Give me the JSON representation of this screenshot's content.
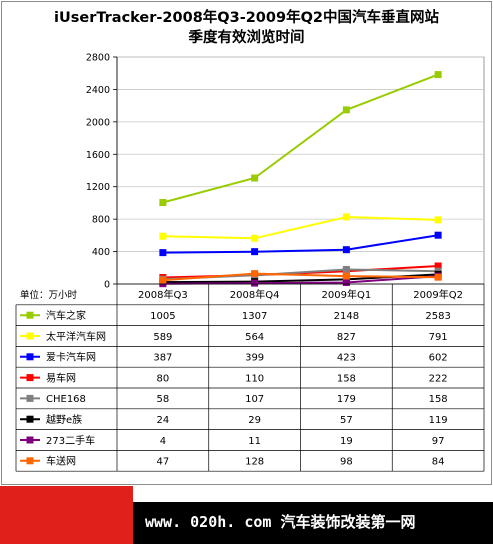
{
  "chart_data": {
    "type": "line",
    "title_line1": "iUserTracker-2008年Q3-2009年Q2中国汽车垂直网站",
    "title_line2": "季度有效浏览时间",
    "unit_label": "单位：万小时",
    "categories": [
      "2008年Q3",
      "2008年Q4",
      "2009年Q1",
      "2009年Q2"
    ],
    "ylim": [
      0,
      2800
    ],
    "yticks": [
      0,
      400,
      800,
      1200,
      1600,
      2000,
      2400,
      2800
    ],
    "grid": true,
    "legend": "table-below",
    "series": [
      {
        "name": "汽车之家",
        "color": "#99cc00",
        "values": [
          1005,
          1307,
          2148,
          2583
        ]
      },
      {
        "name": "太平洋汽车网",
        "color": "#ffff00",
        "values": [
          589,
          564,
          827,
          791
        ]
      },
      {
        "name": "爱卡汽车网",
        "color": "#0000ff",
        "values": [
          387,
          399,
          423,
          602
        ]
      },
      {
        "name": "易车网",
        "color": "#ff0000",
        "values": [
          80,
          110,
          158,
          222
        ]
      },
      {
        "name": "CHE168",
        "color": "#808080",
        "values": [
          58,
          107,
          179,
          158
        ]
      },
      {
        "name": "越野e族",
        "color": "#000000",
        "values": [
          24,
          29,
          57,
          119
        ]
      },
      {
        "name": "273二手车",
        "color": "#800080",
        "values": [
          4,
          11,
          19,
          97
        ]
      },
      {
        "name": "车送网",
        "color": "#ff6600",
        "values": [
          47,
          128,
          98,
          84
        ]
      }
    ]
  },
  "footer": {
    "text": "www. 020h. com 汽车装饰改装第一网"
  }
}
